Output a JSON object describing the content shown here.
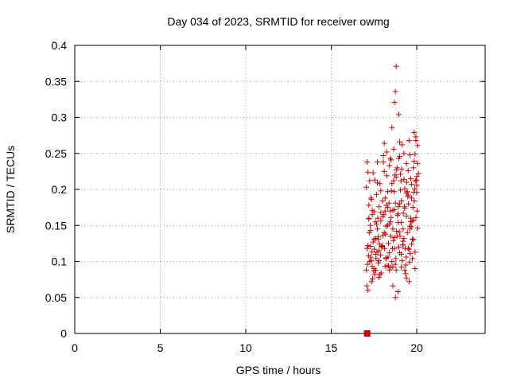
{
  "chart_data": {
    "type": "scatter",
    "title": "Day 034 of 2023, SRMTID for receiver owmg",
    "xlabel": "GPS time / hours",
    "ylabel": "SRMTID / TECUs",
    "xlim": [
      0,
      24
    ],
    "ylim": [
      0,
      0.4
    ],
    "xticks": [
      0,
      5,
      10,
      15,
      20
    ],
    "yticks": [
      0,
      0.05,
      0.1,
      0.15,
      0.2,
      0.25,
      0.3,
      0.35,
      0.4
    ],
    "ytick_labels": [
      "0",
      "0.05",
      "0.1",
      "0.15",
      "0.2",
      "0.25",
      "0.3",
      "0.35",
      "0.4"
    ],
    "grid": true,
    "marker_color": "#cc0000",
    "series": [
      {
        "name": "SRMTID",
        "marker": "plus",
        "x": [
          17.05,
          17.1,
          17.15,
          17.2,
          17.25,
          17.3,
          17.35,
          17.4,
          17.45,
          17.5,
          17.55,
          17.6,
          17.65,
          17.7,
          17.75,
          17.8,
          17.85,
          17.9,
          17.95,
          18.0,
          18.05,
          18.1,
          18.15,
          18.2,
          18.25,
          18.3,
          18.35,
          18.4,
          18.45,
          18.5,
          18.55,
          18.6,
          18.65,
          18.7,
          18.75,
          18.8,
          18.85,
          18.9,
          18.95,
          19.0,
          19.05,
          19.1,
          19.15,
          19.2,
          19.25,
          19.3,
          19.35,
          19.4,
          19.45,
          19.5,
          19.55,
          19.6,
          19.65,
          19.7,
          19.75,
          19.8,
          19.85,
          19.9,
          19.95,
          20.0,
          20.05,
          20.1,
          17.1,
          17.2,
          17.3,
          17.4,
          17.5,
          17.6,
          17.7,
          17.8,
          17.9,
          18.0,
          18.1,
          18.2,
          18.3,
          18.4,
          18.5,
          18.6,
          18.7,
          18.8,
          18.9,
          19.0,
          19.1,
          19.2,
          19.3,
          19.4,
          19.5,
          19.6,
          19.7,
          19.8,
          19.9,
          20.0,
          17.12,
          17.22,
          17.32,
          17.42,
          17.52,
          17.62,
          17.72,
          17.82,
          17.92,
          18.02,
          18.12,
          18.22,
          18.32,
          18.42,
          18.52,
          18.62,
          18.72,
          18.82,
          18.92,
          19.02,
          19.12,
          19.22,
          19.32,
          19.42,
          19.52,
          19.62,
          19.72,
          19.82,
          19.92,
          20.02,
          17.08,
          17.18,
          17.28,
          17.38,
          17.48,
          17.58,
          17.68,
          17.78,
          17.88,
          17.98,
          18.08,
          18.18,
          18.28,
          18.38,
          18.48,
          18.58,
          18.68,
          18.78,
          18.88,
          18.98,
          19.08,
          19.18,
          19.28,
          19.38,
          19.48,
          19.58,
          19.68,
          19.78,
          19.88,
          19.98,
          17.15,
          17.35,
          17.55,
          17.75,
          17.95,
          18.15,
          18.35,
          18.55,
          18.75,
          18.95,
          19.15,
          19.35,
          19.55,
          19.75,
          19.95,
          18.05,
          18.1,
          18.55,
          18.7,
          18.75,
          18.8,
          18.95,
          19.0,
          19.55,
          19.85,
          19.95,
          20.05,
          17.25,
          17.45,
          17.65,
          17.85,
          18.25,
          18.45,
          18.65,
          18.85,
          19.05,
          19.25,
          19.45,
          19.65,
          19.85,
          20.05,
          17.05,
          17.15,
          17.35,
          17.6,
          17.8,
          18.2,
          18.4,
          18.6,
          18.9,
          19.1,
          19.3,
          19.5,
          19.7,
          19.9,
          17.2,
          17.4,
          17.7,
          17.9,
          18.3,
          18.5,
          18.7,
          19.0,
          19.2,
          19.4,
          19.6,
          19.8,
          20.0,
          18.6,
          18.75,
          18.8,
          19.1,
          19.4,
          17.3,
          17.5,
          17.75,
          18.15,
          18.45,
          19.25,
          19.65
        ],
        "y": [
          0.203,
          0.118,
          0.224,
          0.159,
          0.1,
          0.143,
          0.186,
          0.093,
          0.127,
          0.169,
          0.213,
          0.11,
          0.152,
          0.238,
          0.131,
          0.176,
          0.082,
          0.198,
          0.121,
          0.162,
          0.247,
          0.14,
          0.188,
          0.105,
          0.219,
          0.15,
          0.125,
          0.233,
          0.17,
          0.092,
          0.208,
          0.145,
          0.256,
          0.118,
          0.181,
          0.227,
          0.135,
          0.166,
          0.243,
          0.112,
          0.199,
          0.154,
          0.262,
          0.128,
          0.214,
          0.174,
          0.095,
          0.236,
          0.14,
          0.192,
          0.117,
          0.248,
          0.16,
          0.207,
          0.131,
          0.23,
          0.184,
          0.113,
          0.268,
          0.196,
          0.146,
          0.222,
          0.238,
          0.178,
          0.121,
          0.165,
          0.09,
          0.132,
          0.209,
          0.101,
          0.156,
          0.184,
          0.225,
          0.149,
          0.197,
          0.112,
          0.241,
          0.171,
          0.133,
          0.217,
          0.154,
          0.246,
          0.184,
          0.123,
          0.201,
          0.163,
          0.226,
          0.145,
          0.188,
          0.13,
          0.249,
          0.206,
          0.096,
          0.14,
          0.188,
          0.076,
          0.117,
          0.104,
          0.16,
          0.124,
          0.084,
          0.136,
          0.118,
          0.178,
          0.106,
          0.152,
          0.198,
          0.129,
          0.22,
          0.142,
          0.176,
          0.135,
          0.228,
          0.167,
          0.118,
          0.21,
          0.18,
          0.111,
          0.156,
          0.196,
          0.212,
          0.17,
          0.066,
          0.108,
          0.15,
          0.113,
          0.087,
          0.155,
          0.113,
          0.078,
          0.109,
          0.122,
          0.165,
          0.138,
          0.094,
          0.181,
          0.135,
          0.118,
          0.197,
          0.104,
          0.164,
          0.141,
          0.212,
          0.123,
          0.176,
          0.106,
          0.19,
          0.099,
          0.148,
          0.175,
          0.201,
          0.213,
          0.06,
          0.072,
          0.082,
          0.098,
          0.12,
          0.093,
          0.094,
          0.1,
          0.096,
          0.12,
          0.101,
          0.083,
          0.072,
          0.104,
          0.161,
          0.238,
          0.264,
          0.286,
          0.321,
          0.336,
          0.371,
          0.304,
          0.266,
          0.268,
          0.279,
          0.273,
          0.261,
          0.212,
          0.223,
          0.193,
          0.208,
          0.252,
          0.243,
          0.212,
          0.23,
          0.221,
          0.25,
          0.197,
          0.215,
          0.239,
          0.236,
          0.088,
          0.122,
          0.101,
          0.088,
          0.115,
          0.104,
          0.088,
          0.066,
          0.058,
          0.092,
          0.088,
          0.118,
          0.124,
          0.09,
          0.16,
          0.171,
          0.145,
          0.168,
          0.175,
          0.161,
          0.172,
          0.18,
          0.145,
          0.195,
          0.149,
          0.157,
          0.218,
          0.092,
          0.05,
          0.088,
          0.11,
          0.077,
          0.106,
          0.131,
          0.134,
          0.17,
          0.155,
          0.132,
          0.155
        ],
        "marker_only": [
          {
            "x": 17.1,
            "y": 0.0,
            "shape": "square"
          }
        ]
      }
    ]
  }
}
